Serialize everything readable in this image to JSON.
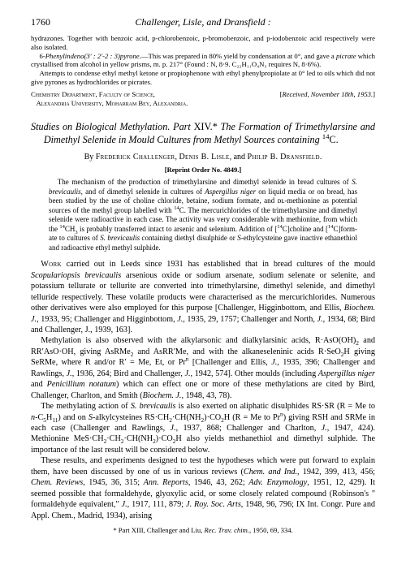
{
  "header": {
    "page": "1760",
    "running": "Challenger, Lisle, and Dransfield :"
  },
  "top": {
    "p0": "hydrazones.  Together with benzoic acid, p-chlorobenzoic, p-bromobenzoic, and p-iodobenzoic acid respectively were also isolated.",
    "p1_head_ital": "Phenylindeno(3′ : 2′-2 : 3)pyrone.",
    "p1_mid": "—This was prepared in 80% yield by condensation at 0°, and gave a ",
    "p1_picrate": "picrate",
    "p1_tail": " which crystallised from alcohol in yellow prisms, m. p. 217° (Found : N, 8·9. C₂₂H₁₁O₄N₃ requires N, 8·6%).",
    "p2": "Attempts to condense ethyl methyl ketone or propiophenone with ethyl phenylpropiolate at 0° led to oils which did not give pyrones as hydrochlorides or picrates.",
    "affil1": "Chemistry Department, Faculty of Science,",
    "affil2": "Alexandria University, Moharram Bey, Alexandria.",
    "received": "Received, November 18th, 1953."
  },
  "article": {
    "title_pre": "Studies on Biological Methylation. Part ",
    "title_part": "XIV.*",
    "title_post": "  The Formation of Tri­methylarsine and Dimethyl Selenide in Mould Cultures from Methyl Sources containing ",
    "by": "By ",
    "author1": "Frederick Challenger",
    "author2": "Denis B. Lisle",
    "and": ", and ",
    "author3": "Philip B. Dransfield",
    "reprint": "[Reprint Order No. 4849.]",
    "abstract_a": "The mechanism of the production of trimethylarsine and dimethyl selenide in bread cultures of ",
    "sbrev": "S. brevicaulis",
    "abstract_b": ", and of dimethyl selenide in cultures of ",
    "aspn": "Aspergillus niger",
    "abstract_c": " on liquid media or on bread, has been studied by the use of choline chloride, betaine, sodium formate, and ᴅʟ-methionine as potential sources of the methyl group labelled with ",
    "abstract_c2": "C.  The mercurichlorides of the tri­methylarsine and dimethyl selenide were radioactive in each case.  The activity was very considerable with methionine, from which the ",
    "abstract_c3": " is probably trans­ferred intact to arsenic and selenium.  Addition of ",
    "abstract_d": " to cultures of ",
    "abstract_e": " containing diethyl disulphide or ",
    "abstract_f": "-ethyl­cysteine gave inactive ethanethiol and radioactive ethyl methyl sulphide."
  },
  "body": {
    "p1_lead": "Work",
    "p1_a": " carried out in Leeds since 1931 has established that in bread cultures of the mould ",
    "scop": "Scopulariopsis brevicaulis",
    "p1_b": " arsenious oxide or sodium arsenate, sodium selenate or selenite, and potassium tellurate or tellurite are converted into trimethylarsine, dimethyl selenide, and dimethyl telluride respectively.  These volatile products were characterised as the mercurichlorides.  Numerous other derivatives were also employed for this purpose [Challenger, Higginbottom, and Ellis, ",
    "bjref": "Biochem. J.",
    "p1_c": ", 1933, 95;  Challenger and Higginbottom, ",
    "p1_d": ", 1935, 29, 1757;  Challenger and North, ",
    "p1_e": ", 1934, 68;  Bird and Challenger, J., 1939, 163].",
    "p2_a": "Methylation is also observed with the alkylarsonic and dialkylarsinic acids, ",
    "p2_b": " and ",
    "p2_c": ", giving ",
    "p2_d": ", and with the alkaneseleninic acids ",
    "p2_e": " [Challenger and Ellis, ",
    "p2_f": ", 1935, 396;  Challenger and Rawlings, ",
    "p2_g": ", 1936, 264;  Bird and Challenger, ",
    "p2_h": ", 1942, 574]. Other moulds (including ",
    "aspn": "Aspergillus niger",
    "pen": "Penicillium notatum",
    "p2_i": ") which can effect one or more of these methylations are cited by Bird, Challenger, Charlton, and Smith (",
    "p2_j": ", 1948, 43, 78).",
    "p3_a": "The methylating action of ",
    "sbrev": "S. brevicaulis",
    "p3_b": " is also exerted on aliphatic disulphides RS·SR (R = Me to ",
    "p3_c": " and on ",
    "p3_d": " giving RSH and SRMe in each case (Challenger and Rawlings, ",
    "p3_e": ", 1937, 868;  Challenger and Charlton, ",
    "p3_f": ", 1947, 424).  Methionine ",
    "p3_g": " also yields methanethiol and dimethyl sulphide.  The importance of the last result will be considered below.",
    "p4_a": "These results, and experiments designed to test the hypotheses which were put forward to explain them, have been discussed by one of us in various reviews (",
    "ciref": "Chem. and Ind.",
    "p4_b": ", 1942, 399, 413, 456;  ",
    "crref": "Chem. Reviews",
    "p4_c": ", 1945, 36, 315;  ",
    "arref": "Ann. Reports",
    "p4_d": ", 1946, 43, 262;  ",
    "aeref": "Adv. Enzym­ology",
    "p4_e": ", 1951, 12, 429).  It seemed possible that formaldehyde, glyoxylic acid, or some closely related compound (Robinson's \" formaldehyde equivalent,\" ",
    "p4_f": ", 1917, 111, 879;  ",
    "rsref": "J. Roy. Soc. Arts",
    "p4_g": ", 1948, 96, 796; IX Int. Congr. Pure and Appl. Chem., Madrid, 1934), arising"
  },
  "foot": {
    "a": "* Part XIII, Challenger and Liu, ",
    "j": "Rec. Trav. chim.",
    "b": ", 1950, 69, 334."
  }
}
